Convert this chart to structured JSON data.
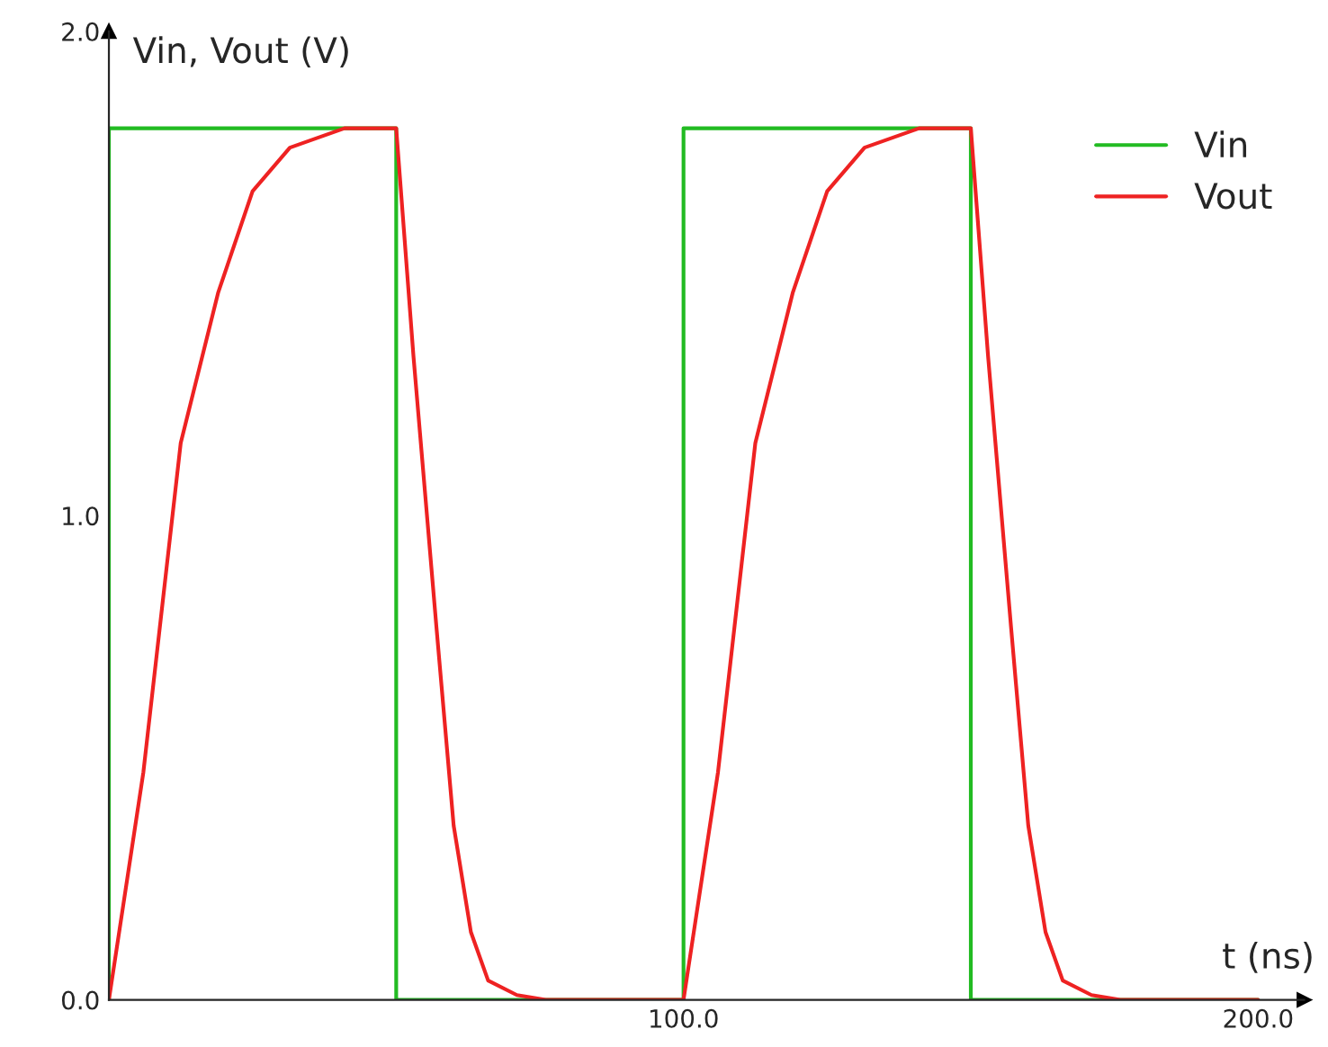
{
  "chart_data": {
    "type": "line",
    "xlabel": "t (ns)",
    "ylabel": "Vin, Vout (V)",
    "xlim": [
      0,
      208
    ],
    "ylim": [
      0,
      2.0
    ],
    "xticks": [
      {
        "value": 100,
        "label": "100.0"
      },
      {
        "value": 200,
        "label": "200.0"
      }
    ],
    "yticks": [
      {
        "value": 0,
        "label": "0.0"
      },
      {
        "value": 1.0,
        "label": "1.0"
      },
      {
        "value": 2.0,
        "label": "2.0"
      }
    ],
    "grid": false,
    "legend": "top right",
    "marker": "none",
    "line_style": "solid",
    "series": [
      {
        "name": "Vin",
        "color": "#22bb22",
        "x": [
          0,
          0,
          50,
          50,
          100,
          100,
          150,
          150,
          200
        ],
        "values": [
          0,
          1.8,
          1.8,
          0,
          0,
          1.8,
          1.8,
          0,
          0
        ]
      },
      {
        "name": "Vout",
        "color": "#ee2222",
        "x": [
          0,
          6,
          12.5,
          19,
          25,
          31.5,
          41,
          50,
          53,
          57,
          60,
          63,
          66,
          71,
          76,
          100,
          106,
          112.5,
          119,
          125,
          131.5,
          141,
          150,
          153,
          157,
          160,
          163,
          166,
          171,
          176,
          200
        ],
        "values": [
          0,
          0.47,
          1.15,
          1.46,
          1.67,
          1.76,
          1.8,
          1.8,
          1.33,
          0.77,
          0.36,
          0.14,
          0.04,
          0.01,
          0,
          0,
          0.47,
          1.15,
          1.46,
          1.67,
          1.76,
          1.8,
          1.8,
          1.33,
          0.77,
          0.36,
          0.14,
          0.04,
          0.01,
          0,
          0
        ]
      }
    ]
  }
}
